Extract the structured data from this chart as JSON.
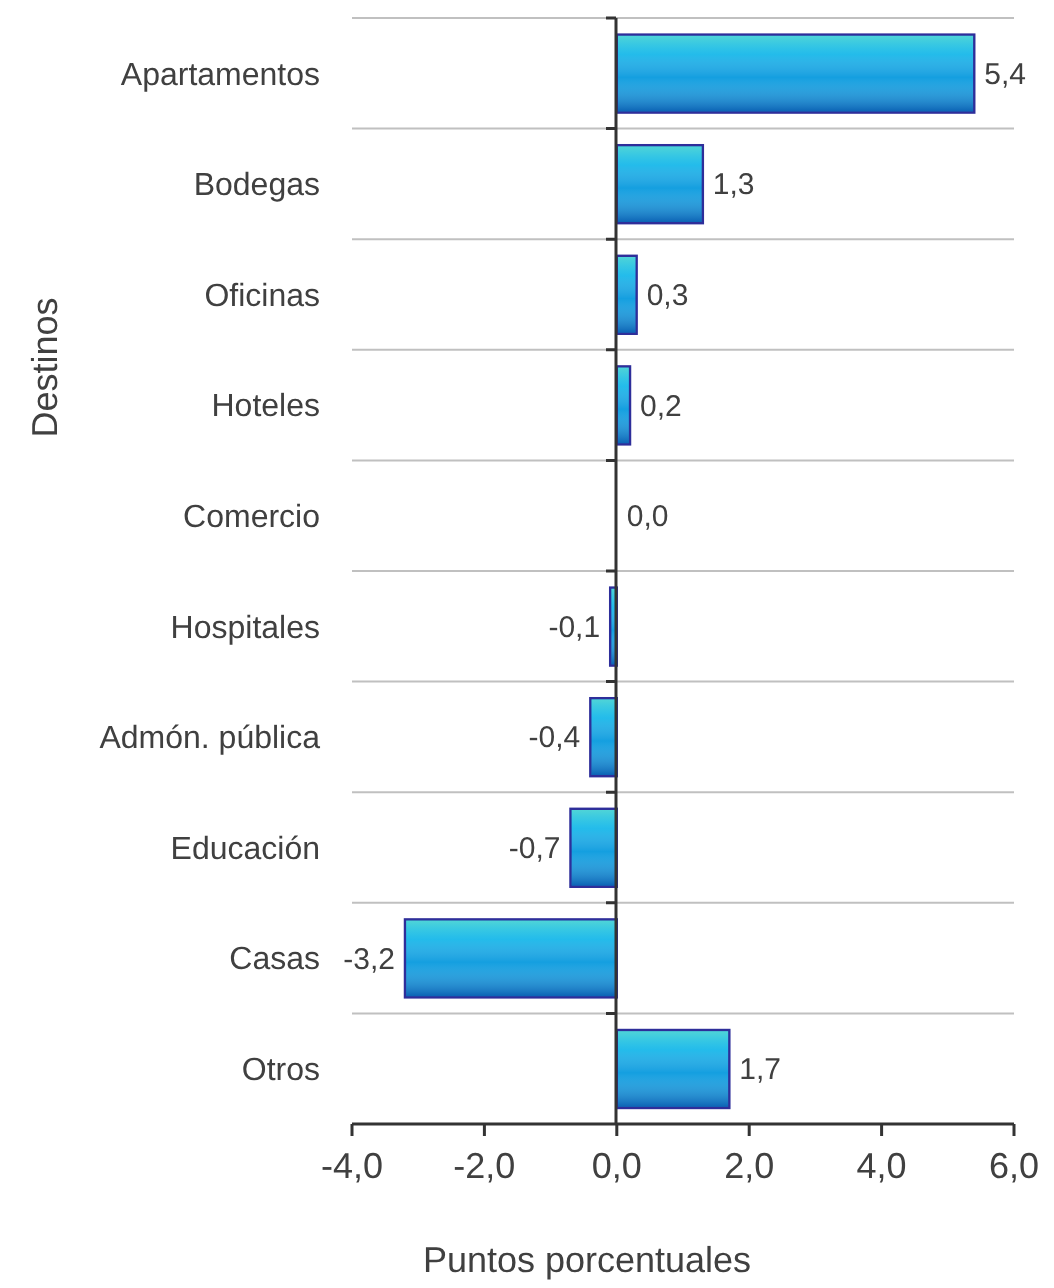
{
  "chart_data": {
    "type": "bar",
    "orientation": "horizontal",
    "ylabel": "Destinos",
    "xlabel": "Puntos porcentuales",
    "categories": [
      "Apartamentos",
      "Bodegas",
      "Oficinas",
      "Hoteles",
      "Comercio",
      "Hospitales",
      "Admón. pública",
      "Educación",
      "Casas",
      "Otros"
    ],
    "values": [
      5.4,
      1.3,
      0.3,
      0.2,
      0.0,
      -0.1,
      -0.4,
      -0.7,
      -3.2,
      1.7
    ],
    "value_labels": [
      "5,4",
      "1,3",
      "0,3",
      "0,2",
      "0,0",
      "-0,1",
      "-0,4",
      "-0,7",
      "-3,2",
      "1,7"
    ],
    "color": "#149fe0",
    "xlim": [
      -4,
      6
    ],
    "xticks": [
      {
        "value": -4,
        "label": "-4,0"
      },
      {
        "value": -2,
        "label": "-2,0"
      },
      {
        "value": 0,
        "label": "0,0"
      },
      {
        "value": 2,
        "label": "2,0"
      },
      {
        "value": 4,
        "label": "4,0"
      },
      {
        "value": 6,
        "label": "6,0"
      }
    ],
    "grid": "y"
  }
}
